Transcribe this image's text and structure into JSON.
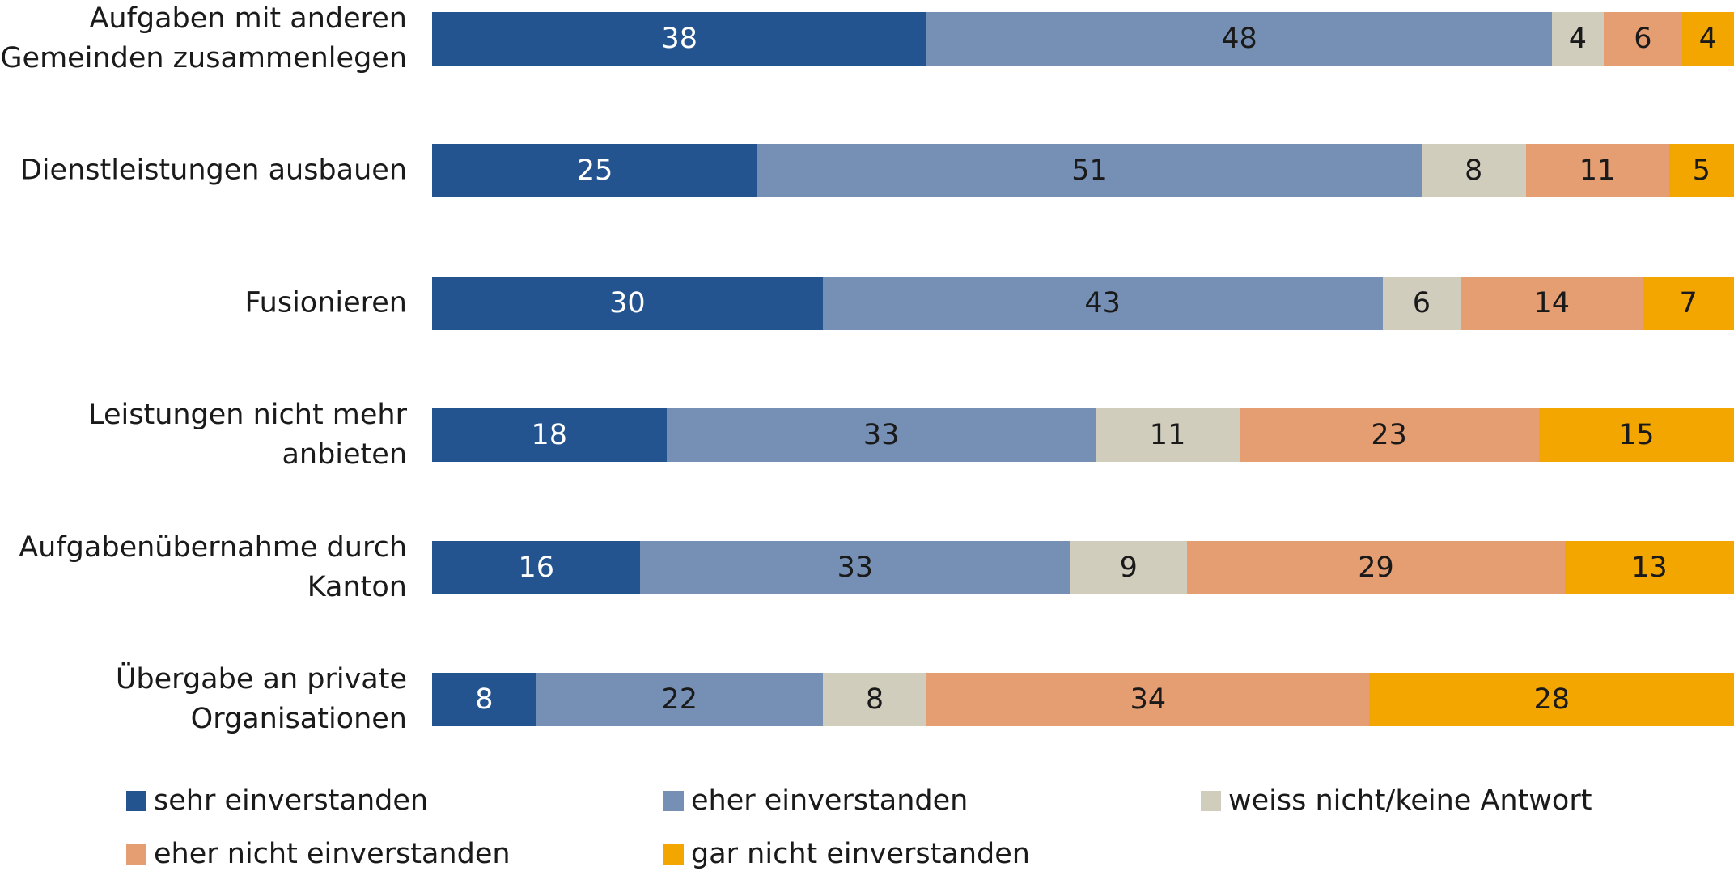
{
  "chart_data": {
    "type": "stacked-bar-horizontal",
    "categories": [
      "Aufgaben mit anderen\nGemeinden zusammenlegen",
      "Dienstleistungen ausbauen",
      "Fusionieren",
      "Leistungen nicht mehr\nanbieten",
      "Aufgabenübernahme durch\nKanton",
      "Übergabe an private\nOrganisationen"
    ],
    "series": [
      {
        "name": "sehr einverstanden",
        "color": "#24548f",
        "label_color": "#ffffff",
        "values": [
          38,
          25,
          30,
          18,
          16,
          8
        ]
      },
      {
        "name": "eher einverstanden",
        "color": "#7690b5",
        "label_color": "#1a1a1a",
        "values": [
          48,
          51,
          43,
          33,
          33,
          22
        ]
      },
      {
        "name": "weiss nicht/keine Antwort",
        "color": "#d0cdbd",
        "label_color": "#1a1a1a",
        "values": [
          4,
          8,
          6,
          11,
          9,
          8
        ]
      },
      {
        "name": "eher nicht einverstanden",
        "color": "#e59d72",
        "label_color": "#1a1a1a",
        "values": [
          6,
          11,
          14,
          23,
          29,
          34
        ]
      },
      {
        "name": "gar nicht einverstanden",
        "color": "#f3a600",
        "label_color": "#1a1a1a",
        "values": [
          4,
          5,
          7,
          15,
          13,
          28
        ]
      }
    ],
    "legend": "bottom"
  }
}
